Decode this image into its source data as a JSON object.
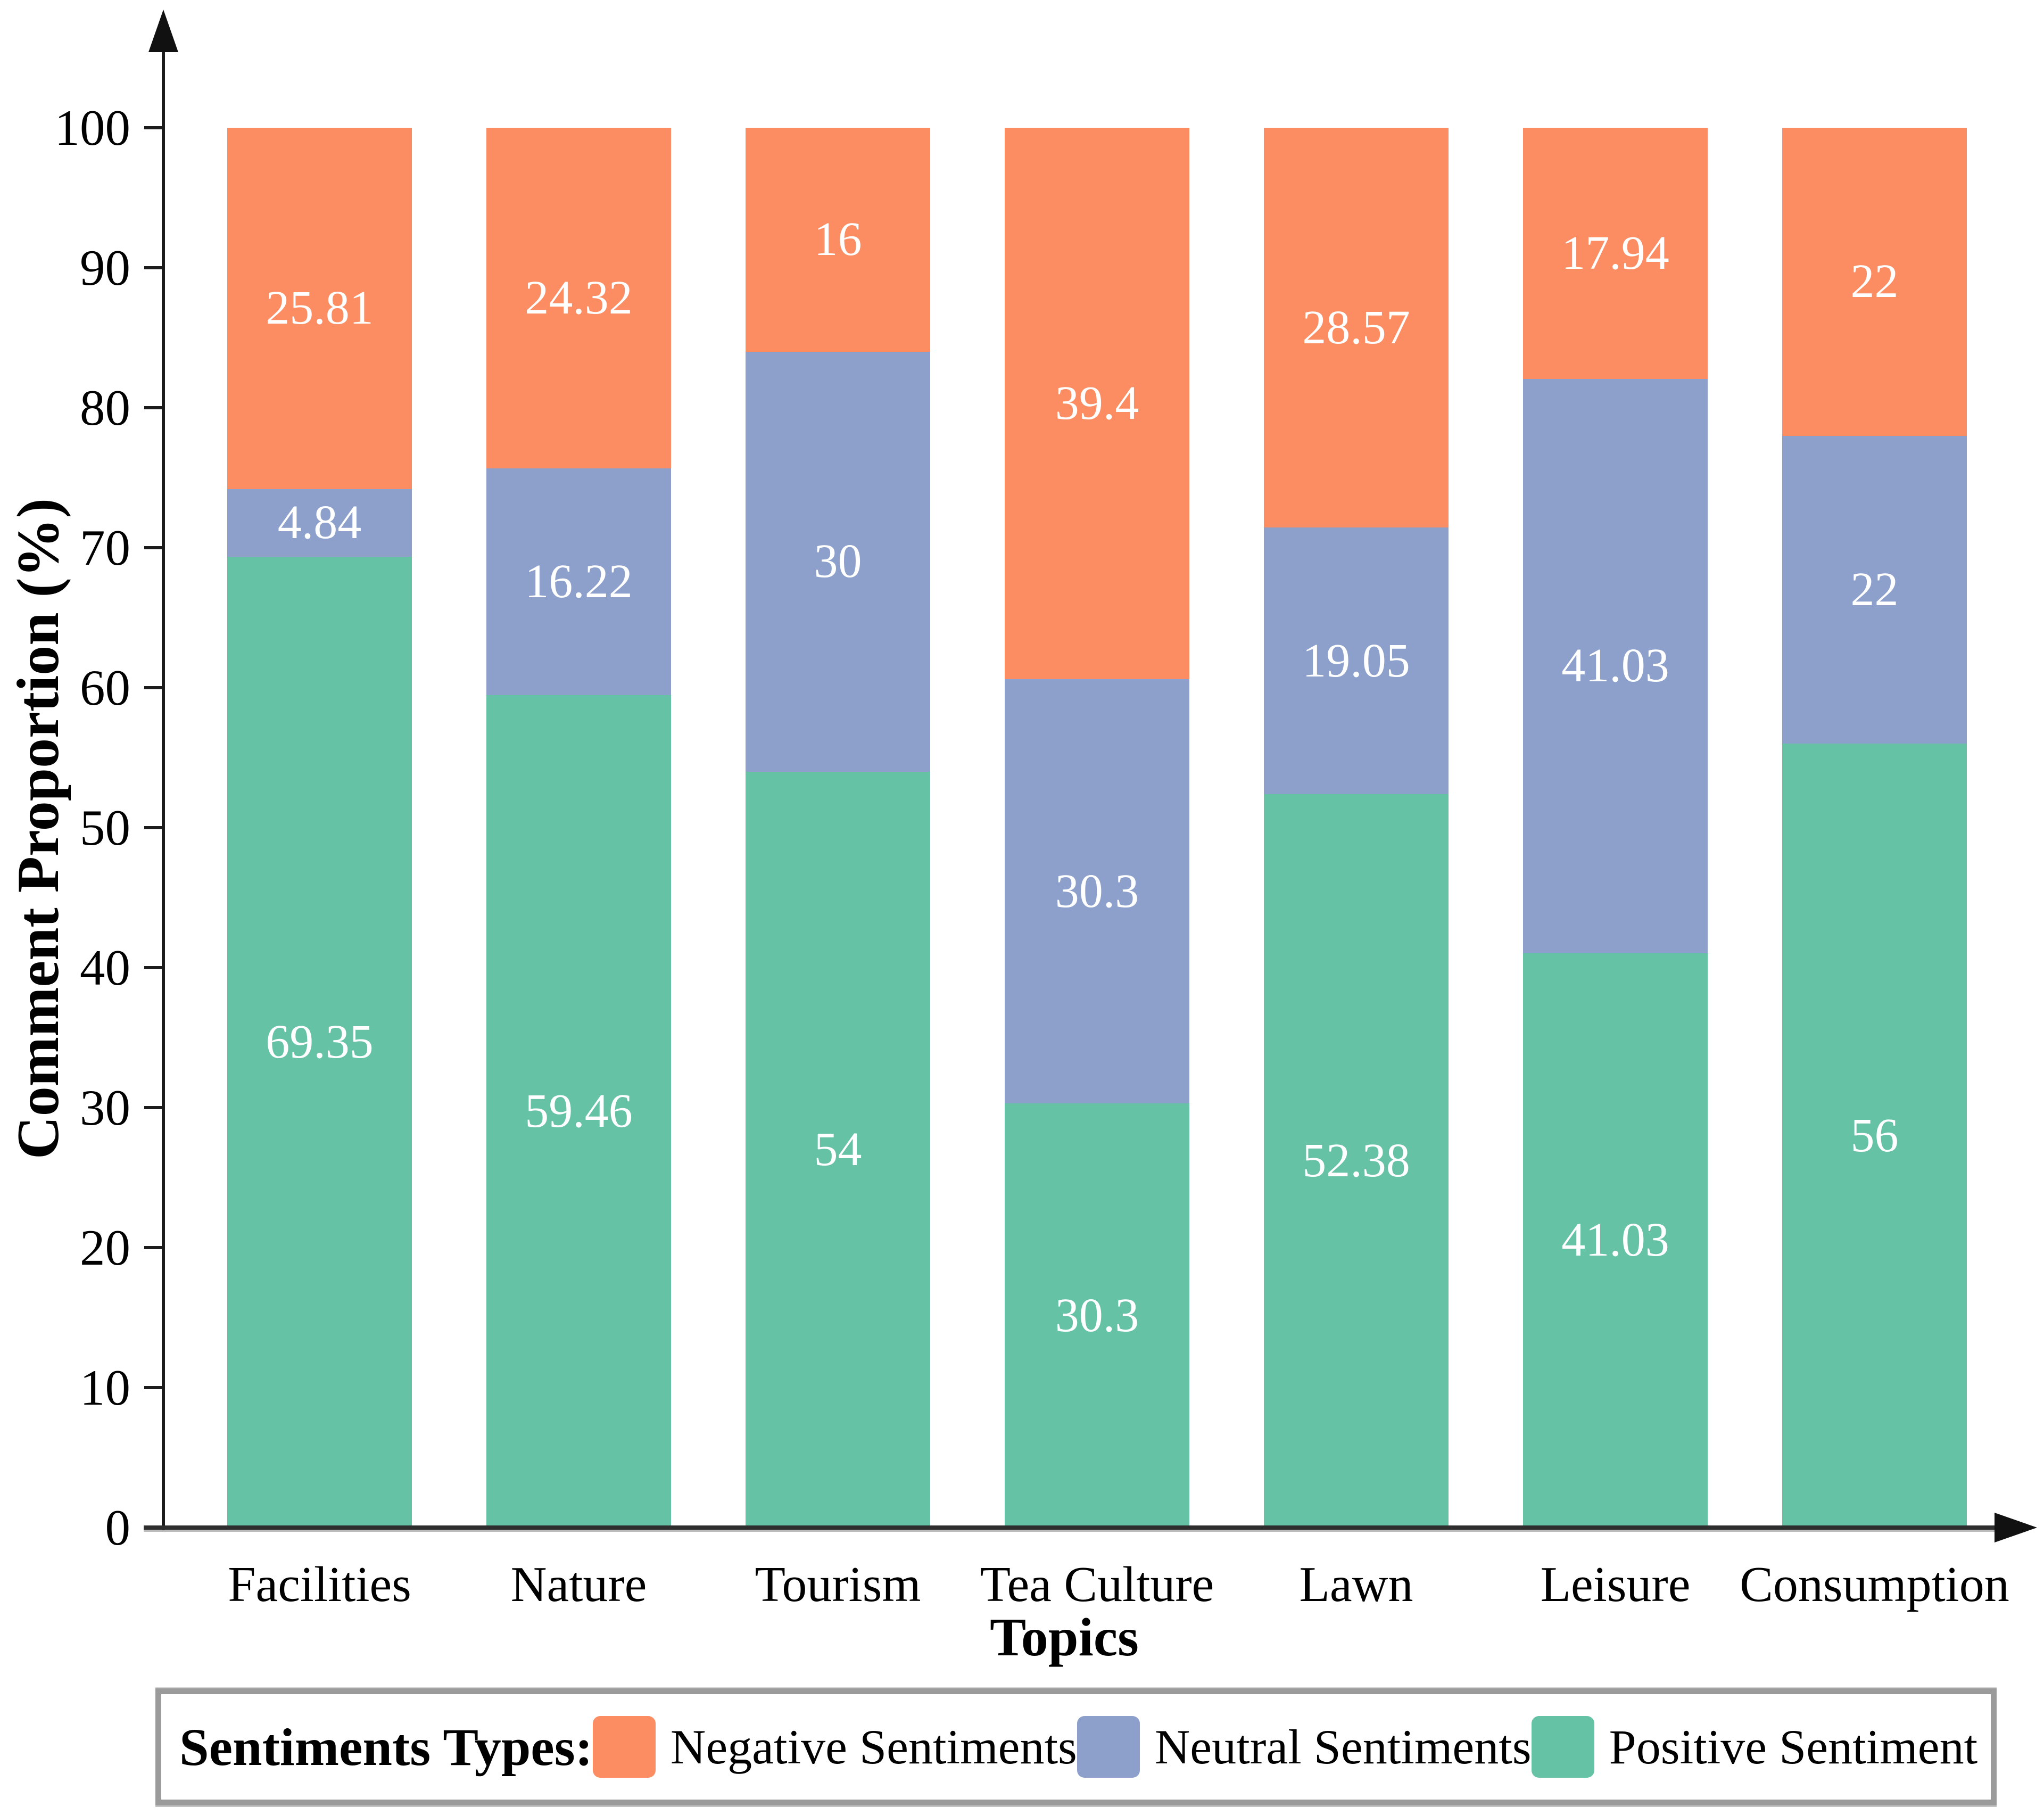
{
  "chart_data": {
    "type": "bar",
    "stacked": true,
    "xlabel": "Topics",
    "ylabel": "Comment Proportion (%)",
    "ylim": [
      0,
      100
    ],
    "yticks": [
      0,
      10,
      20,
      30,
      40,
      50,
      60,
      70,
      80,
      90,
      100
    ],
    "grid": false,
    "categories": [
      "Facilities",
      "Nature",
      "Tourism",
      "Tea Culture",
      "Lawn",
      "Leisure",
      "Consumption"
    ],
    "stack_order": "bottom-to-top",
    "series": [
      {
        "name": "Positive Sentiment",
        "color": "#66C2A5",
        "values": [
          69.35,
          59.46,
          54,
          30.3,
          52.38,
          41.03,
          56
        ],
        "labels": [
          "69.35",
          "59.46",
          "54",
          "30.3",
          "52.38",
          "41.03",
          "56"
        ]
      },
      {
        "name": "Neutral Sentiments",
        "color": "#8DA0CB",
        "values": [
          4.84,
          16.22,
          30,
          30.3,
          19.05,
          41.03,
          22
        ],
        "labels": [
          "4.84",
          "16.22",
          "30",
          "30.3",
          "19.05",
          "41.03",
          "22"
        ]
      },
      {
        "name": "Negative Sentiments",
        "color": "#FC8D62",
        "values": [
          25.81,
          24.32,
          16,
          39.4,
          28.57,
          17.94,
          22
        ],
        "labels": [
          "25.81",
          "24.32",
          "16",
          "39.4",
          "28.57",
          "17.94",
          "22"
        ]
      }
    ]
  },
  "legend": {
    "title": "Sentiments Types:",
    "position": "bottom",
    "items": [
      {
        "label": "Negative Sentiments",
        "color": "#FC8D62"
      },
      {
        "label": "Neutral Sentiments",
        "color": "#8DA0CB"
      },
      {
        "label": "Positive Sentiment",
        "color": "#66C2A5"
      }
    ]
  }
}
